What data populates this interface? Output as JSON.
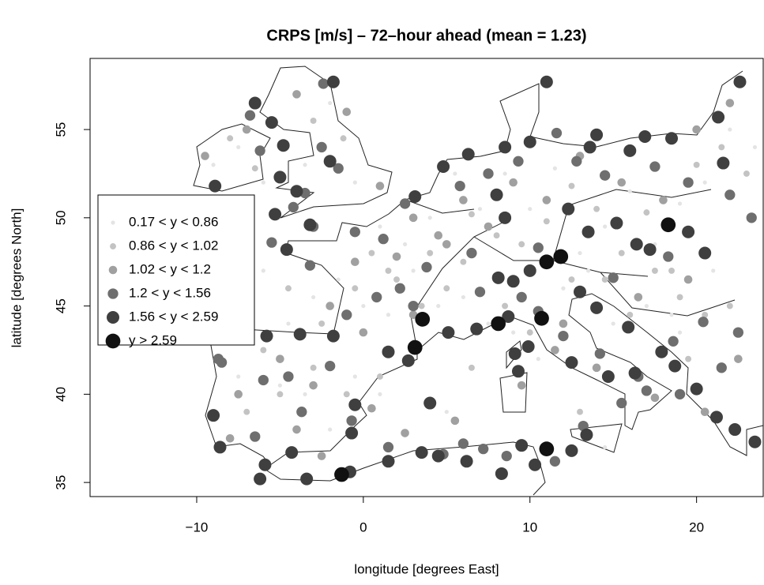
{
  "chart_data": {
    "type": "scatter",
    "title": "CRPS [m/s] – 72–hour ahead (mean = 1.23)",
    "x_label": "longitude [degrees East]",
    "y_label": "latitude [degrees North]",
    "xlim": [
      -16.4,
      24.0
    ],
    "ylim": [
      34.2,
      59.03
    ],
    "xticks": [
      {
        "value": -10,
        "label": "−10"
      },
      0,
      10,
      20
    ],
    "yticks": [
      35,
      40,
      45,
      50,
      55
    ],
    "legend": "left",
    "series": [
      {
        "name": "0.17 < y < 0.86",
        "color": "#e4e4e4",
        "x": [
          -9,
          -7.5,
          -6,
          -3.5,
          -2,
          -0.5,
          1,
          2.5,
          4,
          5.5,
          7,
          8.5,
          10,
          11.5,
          13,
          14.5,
          16,
          17.5,
          19,
          20.5,
          22,
          23.5,
          21,
          19,
          17,
          15,
          13.5,
          12,
          10.5,
          9,
          7.5,
          6,
          4.5,
          3,
          1.5,
          0,
          -1.5,
          -3,
          -4.5,
          -6,
          -7.5,
          -5,
          -3.5,
          -2,
          -0.5,
          1,
          3,
          5,
          14.5,
          18.5
        ],
        "values": [
          53,
          54,
          52,
          53,
          56.5,
          52,
          49.5,
          48.5,
          50,
          52.5,
          50.5,
          52.5,
          50.5,
          52.8,
          48,
          49.5,
          51.5,
          48.5,
          50.8,
          52,
          55,
          54,
          47,
          43.5,
          45,
          44,
          47,
          46,
          42,
          43.5,
          44,
          45.5,
          45,
          47,
          44.5,
          45,
          46.5,
          45.5,
          44,
          47,
          41,
          40.5,
          40,
          38,
          41,
          40,
          43,
          39,
          37,
          44.5
        ]
      },
      {
        "name": "0.86 < y < 1.02",
        "color": "#c3c3c3",
        "x": [
          -8,
          -6.5,
          -3,
          -1.2,
          0.5,
          2,
          3.5,
          5,
          6.5,
          8,
          9.5,
          11,
          12.5,
          14,
          15.5,
          17,
          18.5,
          20,
          21.5,
          23,
          22,
          20.5,
          19,
          17.5,
          16,
          14.5,
          12.5,
          10,
          8.5,
          6,
          4,
          1.5,
          -0.5,
          -2.5,
          -4.5,
          -6,
          -7,
          -5,
          -3,
          -1,
          1,
          3.5,
          6.5,
          13,
          19.5
        ],
        "values": [
          54.5,
          52.8,
          55.5,
          54.5,
          48,
          46.5,
          45,
          46,
          50.2,
          49,
          48.5,
          49.8,
          51.8,
          50.5,
          48,
          50.3,
          47,
          53,
          54,
          52.5,
          45,
          44.5,
          45.5,
          47,
          44.5,
          46.5,
          46.5,
          43.5,
          45,
          47.5,
          48,
          47,
          46,
          44,
          46,
          42.5,
          39,
          40,
          41.5,
          40,
          41,
          44,
          41.5,
          39,
          42
        ]
      },
      {
        "name": "1.02 < y < 1.2",
        "color": "#a0a0a0",
        "x": [
          -9.5,
          -7,
          -4,
          -1,
          1,
          3,
          -0.5,
          2,
          4.5,
          6,
          9,
          11,
          13,
          15.5,
          18,
          20,
          22,
          19.5,
          16.5,
          12,
          7.5,
          5,
          3,
          0,
          -2,
          -5,
          -7.5,
          -8,
          -4,
          -2.5,
          0.5,
          2.5,
          5.5,
          9.5,
          14,
          17.5,
          20.5,
          22.5,
          11.5,
          -3
        ],
        "values": [
          53.5,
          55,
          57,
          56,
          51.8,
          50,
          47.5,
          47.8,
          49,
          51,
          52,
          51,
          53.5,
          52,
          51,
          55,
          56.5,
          46.5,
          45.5,
          44,
          49.5,
          48.5,
          44.5,
          43.5,
          45,
          42,
          40,
          37.5,
          38,
          36.5,
          39.2,
          37.8,
          38.5,
          40.5,
          41.5,
          39.8,
          39,
          42,
          42.5,
          40.5
        ]
      },
      {
        "name": "1.2 < y < 1.56",
        "color": "#6e6e6e",
        "x": [
          -2.4,
          -6.8,
          -2.5,
          -1.5,
          -3.5,
          -6.2,
          -4.2,
          -3,
          -0.5,
          1.2,
          2.5,
          5.8,
          7.5,
          9.3,
          11.6,
          12.8,
          14.5,
          17.5,
          19.5,
          22.0,
          23.3,
          18.3,
          15.0,
          10.5,
          6.5,
          3.8,
          2.2,
          0.8,
          -1.0,
          -3.2,
          -5.5,
          -7.5,
          -8.7,
          -6.0,
          -3.7,
          -0.7,
          1.5,
          4.8,
          6.0,
          7.2,
          8.6,
          11.5,
          13.2,
          15.5,
          16.5,
          18.6,
          20.4,
          22.5,
          21.5,
          19.0,
          17.0,
          14.2,
          12.0,
          10.5,
          9.5,
          7.0,
          3.0,
          -2.0,
          -4.5,
          -6.5,
          -8.5
        ],
        "values": [
          57.6,
          55.8,
          54.0,
          52.8,
          51.4,
          53.8,
          50.6,
          49.5,
          49.2,
          48.8,
          50.8,
          51.8,
          52.5,
          53.2,
          54.8,
          53.2,
          52.4,
          52.9,
          52.0,
          51.3,
          50.0,
          47.8,
          46.6,
          48.3,
          48.0,
          47.2,
          46.0,
          45.5,
          44.5,
          47.3,
          48.6,
          43.5,
          42.0,
          40.8,
          39.0,
          38.5,
          37.0,
          36.6,
          37.2,
          36.9,
          36.5,
          36.2,
          38.2,
          39.5,
          41.0,
          43.0,
          44.1,
          43.5,
          41.5,
          40.0,
          40.2,
          42.3,
          43.3,
          44.7,
          45.5,
          45.8,
          45.0,
          41.6,
          41.0,
          37.6,
          41.8
        ]
      },
      {
        "name": "1.56 < y < 2.59",
        "color": "#3f3f3f",
        "x": [
          -6.5,
          -5.5,
          -4.8,
          -5,
          -4,
          -3.2,
          -5.3,
          -4.6,
          -1.8,
          -2.0,
          -8.9,
          4.8,
          3.1,
          6.3,
          8.5,
          10.0,
          11.0,
          14.0,
          13.6,
          16.9,
          18.5,
          21.3,
          22.6,
          21.6,
          16,
          8.0,
          8.5,
          12.3,
          13.5,
          15.2,
          16.4,
          17.2,
          19.5,
          20.5,
          10.0,
          9.0,
          8.1,
          13.0,
          14.0,
          15.9,
          17.9,
          18.7,
          20.0,
          21.2,
          22.3,
          23.5,
          16.3,
          14.7,
          13.4,
          12.5,
          9.5,
          10.3,
          8.3,
          6.2,
          4.5,
          3.5,
          1.5,
          -0.8,
          -3.4,
          -4.3,
          -5.9,
          -6.2,
          -8.6,
          -9.0,
          -8.3,
          -3.8,
          -1.8,
          -5.8,
          1.5,
          2.7,
          4.0,
          -0.7,
          -0.5,
          5.1,
          6.8,
          8.7,
          9.1,
          9.3,
          9.9,
          12.5
        ],
        "values": [
          56.5,
          55.4,
          54.1,
          52.3,
          51.5,
          49.6,
          50.2,
          48.2,
          57.7,
          53.2,
          51.8,
          52.9,
          51.2,
          53.6,
          54.0,
          54.3,
          57.7,
          54.7,
          54.0,
          54.6,
          54.5,
          55.7,
          57.7,
          53.1,
          53.8,
          51.3,
          50.0,
          50.5,
          49.2,
          49.7,
          48.5,
          48.2,
          49.2,
          48.0,
          47.0,
          46.4,
          46.6,
          45.8,
          44.9,
          43.8,
          42.4,
          41.6,
          40.3,
          38.7,
          38.0,
          37.3,
          41.2,
          41.0,
          37.7,
          36.8,
          37.1,
          36.0,
          35.5,
          36.2,
          36.5,
          36.7,
          36.2,
          35.6,
          35.2,
          36.7,
          36.0,
          35.2,
          37.0,
          38.8,
          43.3,
          43.4,
          43.3,
          43.3,
          42.4,
          41.9,
          39.5,
          37.8,
          39.4,
          43.5,
          43.7,
          44.4,
          42.3,
          41.3,
          42.7,
          41.8
        ]
      },
      {
        "name": "y > 2.59",
        "color": "#111111",
        "x": [
          11.85,
          11.0,
          3.1,
          18.3,
          8.1,
          10.7,
          3.55,
          -1.3,
          11.0
        ],
        "values": [
          47.8,
          36.9,
          42.65,
          49.6,
          44.0,
          44.3,
          44.25,
          35.45,
          47.5
        ]
      }
    ]
  }
}
